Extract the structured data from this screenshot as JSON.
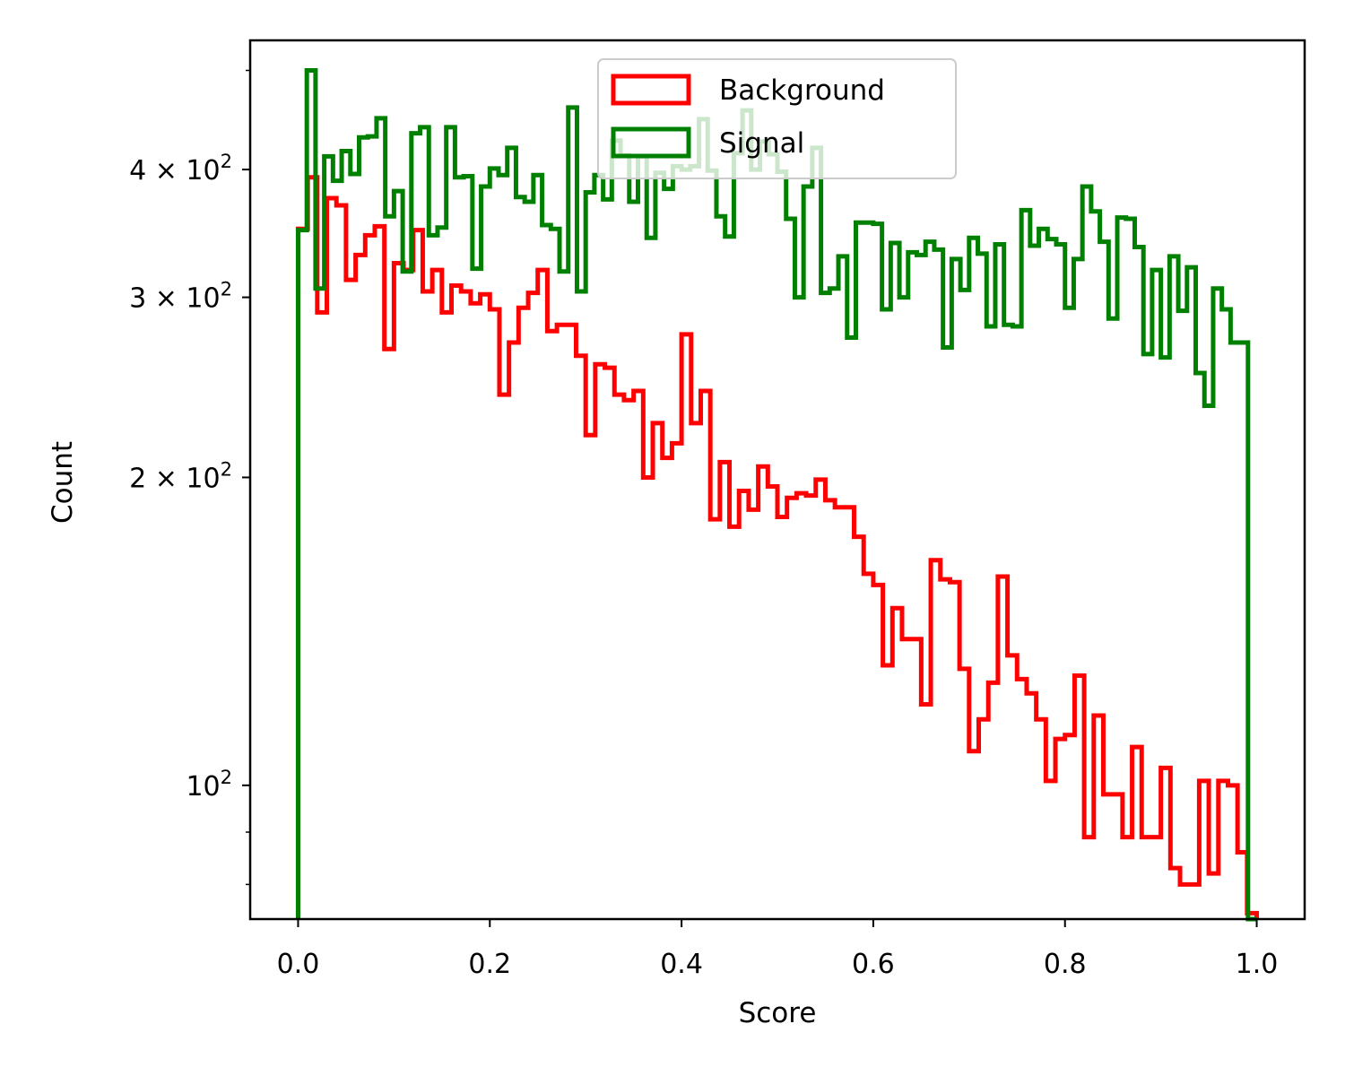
{
  "chart_data": {
    "type": "histogram",
    "xlabel": "Score",
    "ylabel": "Count",
    "xlim": [
      -0.05,
      1.05
    ],
    "ylim": [
      74,
      535
    ],
    "yscale": "log",
    "grid": false,
    "legend_position": "top-center",
    "x_ticks": [
      {
        "value": 0.0,
        "label": "0.0"
      },
      {
        "value": 0.2,
        "label": "0.2"
      },
      {
        "value": 0.4,
        "label": "0.4"
      },
      {
        "value": 0.6,
        "label": "0.6"
      },
      {
        "value": 0.8,
        "label": "0.8"
      },
      {
        "value": 1.0,
        "label": "1.0"
      }
    ],
    "y_ticks": [
      {
        "value": 100,
        "base": "10",
        "exp": "2"
      },
      {
        "value": 200,
        "base": "2 × 10",
        "exp": "2"
      },
      {
        "value": 300,
        "base": "3 × 10",
        "exp": "2"
      },
      {
        "value": 400,
        "base": "4 × 10",
        "exp": "2"
      }
    ],
    "y_minor_ticks": [
      80,
      90,
      500
    ],
    "bin_edges_range": [
      0.0,
      1.0
    ],
    "series": [
      {
        "name": "Background",
        "color": "#ff0000",
        "values": [
          350,
          393,
          290,
          375,
          369,
          312,
          330,
          345,
          352,
          267,
          324,
          319,
          349,
          304,
          319,
          290,
          308,
          304,
          296,
          302,
          292,
          241,
          271,
          293,
          303,
          319,
          278,
          282,
          282,
          263,
          220,
          258,
          256,
          241,
          238,
          243,
          200,
          226,
          209,
          216,
          276,
          226,
          243,
          182,
          207,
          179,
          194,
          186,
          205,
          196,
          183,
          191,
          193,
          192,
          199,
          190,
          187,
          187,
          175,
          161,
          157,
          131,
          149,
          139,
          139,
          120,
          166,
          159,
          158,
          130,
          108,
          116,
          126,
          160,
          134,
          127,
          123,
          116,
          101,
          111,
          112,
          128,
          89,
          117,
          98,
          98,
          89,
          109,
          89,
          89,
          104,
          83,
          80,
          80,
          101,
          82,
          101,
          100,
          86,
          75
        ]
      },
      {
        "name": "Signal",
        "color": "#008000",
        "values": [
          349,
          500,
          306,
          412,
          390,
          417,
          396,
          430,
          431,
          449,
          360,
          381,
          318,
          434,
          440,
          345,
          351,
          440,
          393,
          394,
          320,
          385,
          401,
          395,
          420,
          376,
          372,
          395,
          353,
          350,
          318,
          460,
          304,
          380,
          395,
          374,
          427,
          413,
          372,
          412,
          343,
          397,
          383,
          403,
          400,
          403,
          448,
          399,
          360,
          344,
          415,
          457,
          400,
          426,
          414,
          398,
          358,
          300,
          385,
          420,
          303,
          306,
          329,
          274,
          355,
          355,
          354,
          292,
          339,
          300,
          332,
          330,
          340,
          334,
          268,
          327,
          305,
          343,
          331,
          281,
          338,
          282,
          281,
          365,
          337,
          350,
          342,
          338,
          293,
          327,
          385,
          364,
          340,
          286,
          359,
          358,
          336,
          264,
          319,
          262,
          329,
          291,
          321,
          253,
          235,
          306,
          292,
          271,
          271,
          0
        ]
      }
    ]
  }
}
